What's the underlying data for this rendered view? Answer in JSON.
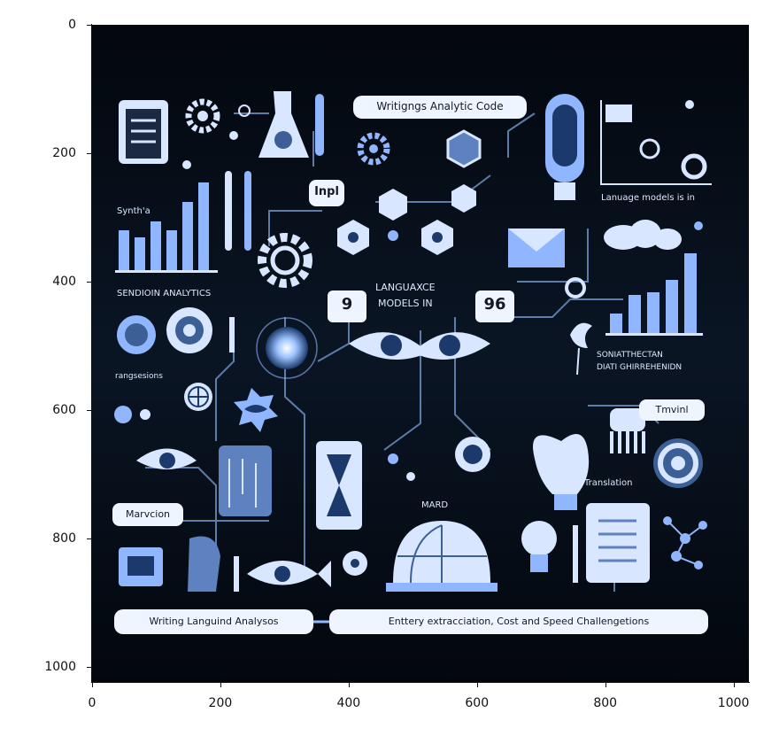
{
  "image": {
    "labels": {
      "writing_code": "Writigngs Analytic Code",
      "inpl": "Inpl",
      "language_models_top": "Lanuage models is in",
      "synth": "Synth'a",
      "sentiment": "SENDIOIN ANALYTICS",
      "language_models_center": "LANGUAXCE\nMODELS IN",
      "badge_left": "9",
      "badge_right": "96",
      "data_comprehension": "SONIATTHECTAN\nDIATI GHIRREHENIDN",
      "rangsessions": "rangsesions",
      "tmvinl": "Tmvinl",
      "translation": "Translation",
      "marvcion": "Marvcion",
      "mard": "MARD",
      "writing_language": "Writing Languind Analysos",
      "entity": "Enttery  extracciation, Cost and Speed Challengetions"
    },
    "colors": {
      "background": "#03070d",
      "accent": "#8fb6ff",
      "light": "#d8e6ff",
      "pill": "#eef5ff"
    }
  },
  "axes": {
    "x_ticks": [
      "0",
      "200",
      "400",
      "600",
      "800",
      "1000"
    ],
    "y_ticks": [
      "0",
      "200",
      "400",
      "600",
      "800",
      "1000"
    ]
  }
}
